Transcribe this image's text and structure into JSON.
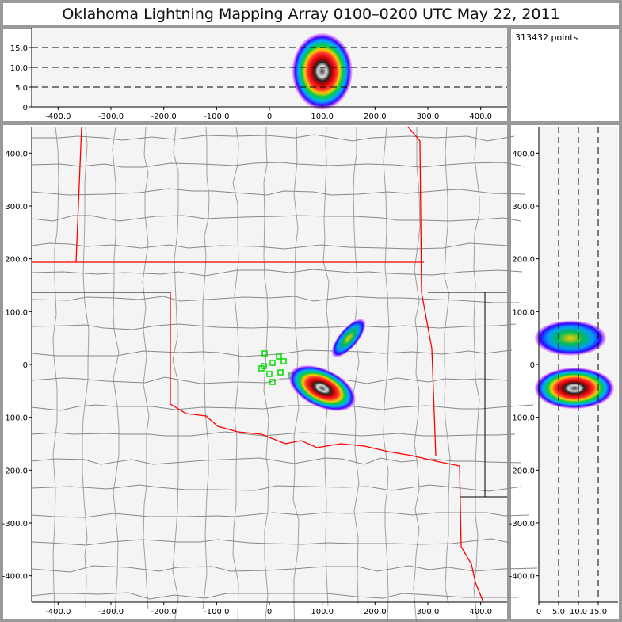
{
  "title": "Oklahoma Lightning Mapping Array   0100–0200 UTC  May 22, 2011",
  "info": {
    "points": "313432 points"
  },
  "colors": {
    "state_border": "#ff0000",
    "county_border": "#888888",
    "station": "#00dd00",
    "plot_bg": "#f4f4f4"
  },
  "chart_data": [
    {
      "type": "scatter",
      "panel": "altitude-vs-east",
      "xlim": [
        -450,
        450
      ],
      "ylim": [
        0,
        20
      ],
      "xticks": [
        "-400.0",
        "-300.0",
        "-200.0",
        "-100.0",
        "0",
        "100.0",
        "200.0",
        "300.0",
        "400.0"
      ],
      "yticks": [
        "0",
        "5.0",
        "10.0",
        "15.0"
      ],
      "dashed_lines_y": [
        5,
        10,
        15
      ],
      "density_centers": [
        {
          "x": 100,
          "y": 9
        }
      ]
    },
    {
      "type": "scatter",
      "panel": "plan-view",
      "xlim": [
        -450,
        450
      ],
      "ylim": [
        -450,
        450
      ],
      "xticks": [
        "-400.0",
        "-300.0",
        "-200.0",
        "-100.0",
        "0",
        "100.0",
        "200.0",
        "300.0",
        "400.0"
      ],
      "yticks": [
        "400.0",
        "300.0",
        "200.0",
        "100.0",
        "0",
        "-100.0",
        "-200.0",
        "-300.0",
        "-400.0"
      ],
      "density_centers": [
        {
          "x": 100,
          "y": -45
        },
        {
          "x": 150,
          "y": 50
        }
      ]
    },
    {
      "type": "scatter",
      "panel": "north-vs-altitude",
      "xlim": [
        0,
        20
      ],
      "ylim": [
        -450,
        450
      ],
      "xticks": [
        "0",
        "5.0",
        "10.0",
        "15.0"
      ],
      "yticks": [
        "400.0",
        "300.0",
        "200.0",
        "100.0",
        "0",
        "-100.0",
        "-200.0",
        "-300.0",
        "-400.0"
      ],
      "dashed_lines_x": [
        5,
        10,
        15
      ],
      "density_centers": [
        {
          "x": 9,
          "y": -45
        },
        {
          "x": 8,
          "y": 50
        }
      ]
    }
  ]
}
